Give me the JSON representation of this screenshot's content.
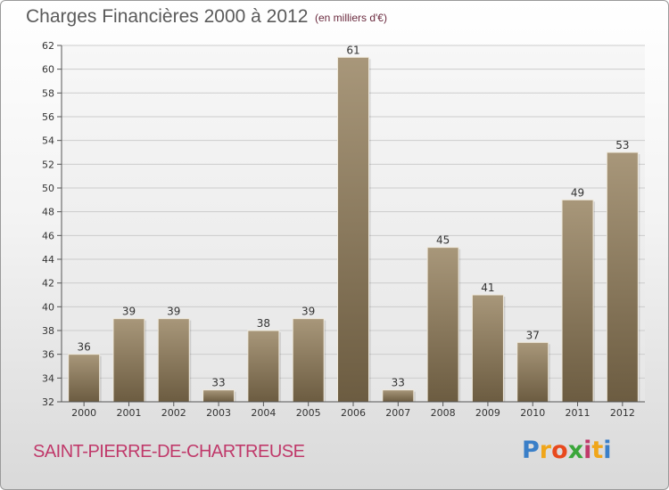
{
  "header": {
    "title": "Charges Financières 2000 à 2012",
    "subtitle": "(en milliers d'€)"
  },
  "footer": {
    "place": "SAINT-PIERRE-DE-CHARTREUSE",
    "logo_letters": [
      "P",
      "r",
      "o",
      "x",
      "i",
      "t",
      "i"
    ],
    "logo_colors": [
      "#3a7fc8",
      "#f0a61a",
      "#e8491d",
      "#3aa63a",
      "#c0396a",
      "#f0a61a",
      "#3a7fc8"
    ]
  },
  "chart_data": {
    "type": "bar",
    "categories": [
      "2000",
      "2001",
      "2002",
      "2003",
      "2004",
      "2005",
      "2006",
      "2007",
      "2008",
      "2009",
      "2010",
      "2011",
      "2012"
    ],
    "values": [
      36,
      39,
      39,
      33,
      38,
      39,
      61,
      33,
      45,
      41,
      37,
      49,
      53
    ],
    "ylim": [
      32,
      62
    ],
    "yticks": [
      32,
      34,
      36,
      38,
      40,
      42,
      44,
      46,
      48,
      50,
      52,
      54,
      56,
      58,
      60,
      62
    ],
    "grid": true,
    "bar_color": "#8b7a5e"
  }
}
